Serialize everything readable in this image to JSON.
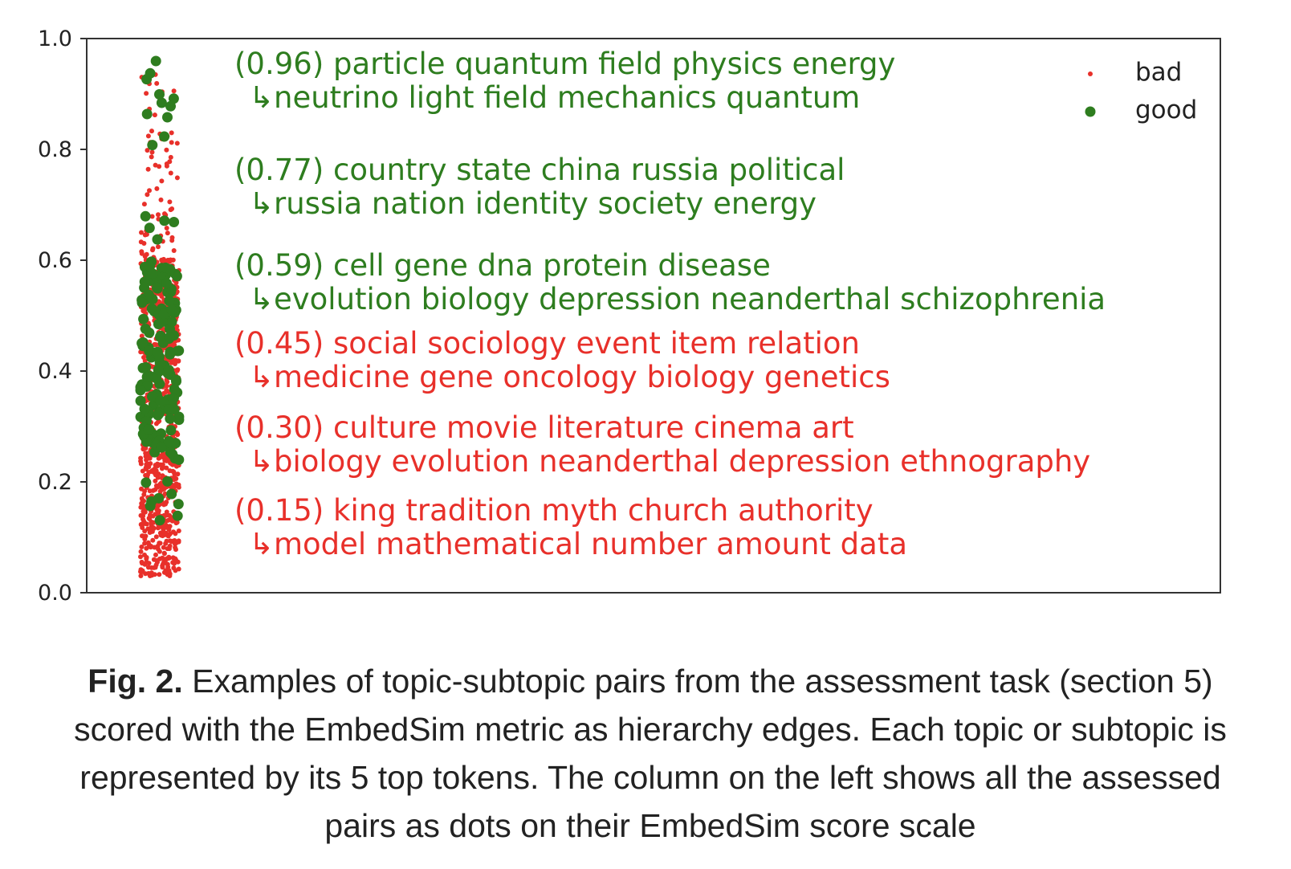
{
  "chart_data": {
    "type": "scatter",
    "ylim": [
      0.0,
      1.0
    ],
    "yticks": [
      "0.0",
      "0.2",
      "0.4",
      "0.6",
      "0.8",
      "1.0"
    ],
    "colors": {
      "bad": "#e8302a",
      "good": "#2e7d1f",
      "axis": "#333333"
    },
    "legend": {
      "placement": "top-right",
      "entries": [
        "bad",
        "good"
      ]
    },
    "series": [
      {
        "name": "bad",
        "color": "#e8302a",
        "count": 900,
        "distribution": "dense 0.03–0.60, sparse 0.60–0.94"
      },
      {
        "name": "good",
        "color": "#2e7d1f",
        "count": 180,
        "distribution": "0.13–0.96, concentrated 0.25–0.60"
      }
    ],
    "annotations": [
      {
        "score": "(0.96)",
        "topic": "particle quantum field physics energy",
        "subtopic": "neutrino light field mechanics quantum",
        "class": "good"
      },
      {
        "score": "(0.77)",
        "topic": "country state china russia political",
        "subtopic": "russia nation identity society energy",
        "class": "good"
      },
      {
        "score": "(0.59)",
        "topic": "cell gene dna protein disease",
        "subtopic": "evolution biology depression neanderthal schizophrenia",
        "class": "good"
      },
      {
        "score": "(0.45)",
        "topic": "social sociology event item relation",
        "subtopic": "medicine gene oncology biology genetics",
        "class": "bad"
      },
      {
        "score": "(0.30)",
        "topic": "culture movie literature cinema art",
        "subtopic": "biology evolution neanderthal depression ethnography",
        "class": "bad"
      },
      {
        "score": "(0.15)",
        "topic": "king tradition myth church authority",
        "subtopic": "model mathematical number amount data",
        "class": "bad"
      }
    ],
    "arrow_glyph": "↳"
  },
  "caption": {
    "label": "Fig. 2.",
    "text": " Examples of topic-subtopic pairs from the assessment task (section 5) scored with the EmbedSim metric as hierarchy edges. Each topic or subtopic is represented by its 5 top tokens. The column on the left shows all the assessed pairs as dots on their EmbedSim score scale"
  }
}
